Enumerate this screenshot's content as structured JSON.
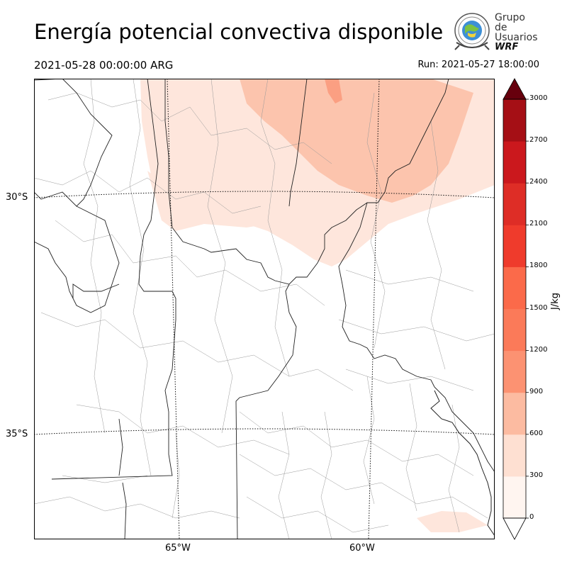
{
  "header": {
    "title": "Energía potencial convectiva disponible",
    "valid_time": "2021-05-28 00:00:00 ARG",
    "run_time": "Run: 2021-05-27 18:00:00"
  },
  "logo": {
    "line1": "Grupo de",
    "line2": "Usuarios",
    "line3": "WRF",
    "icon": "globe-seal-icon"
  },
  "map": {
    "lat_labels": [
      "30°S",
      "35°S"
    ],
    "lon_labels": [
      "65°W",
      "60°W"
    ]
  },
  "colorbar": {
    "unit_label": "J/kg",
    "ticks": [
      "0",
      "300",
      "600",
      "900",
      "1200",
      "1500",
      "1800",
      "2100",
      "2400",
      "2700",
      "3000"
    ],
    "colors": [
      "#fff5f0",
      "#fee0d2",
      "#fcbba1",
      "#fc9272",
      "#fb7a59",
      "#fb6a4a",
      "#ef3b2c",
      "#de2d26",
      "#cb181d",
      "#a50f15",
      "#67000d"
    ],
    "extend": "both"
  }
}
